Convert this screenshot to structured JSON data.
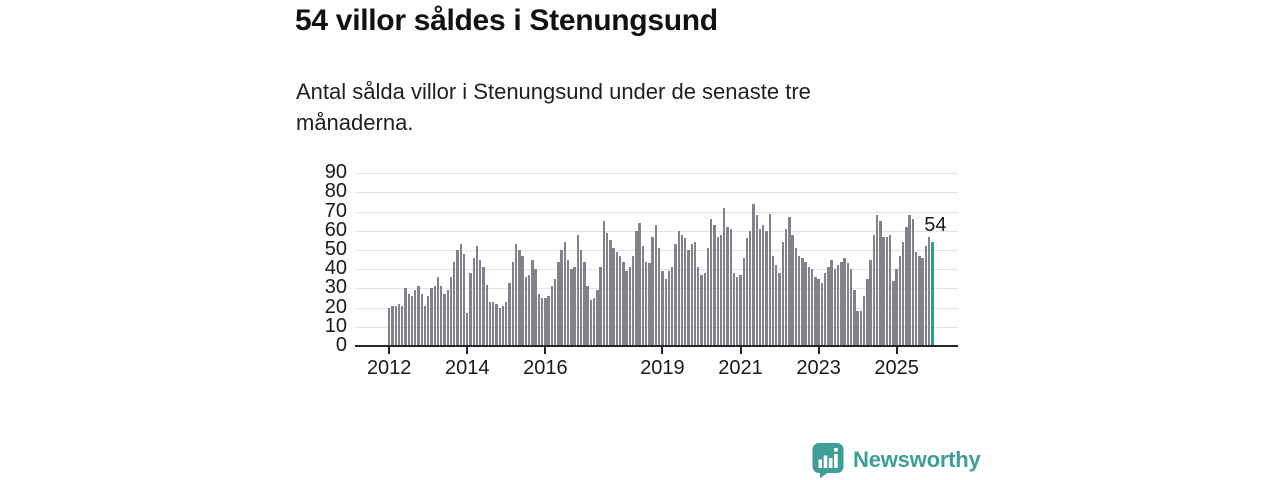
{
  "header": {
    "title": "54 villor såldes i Stenungsund",
    "subtitle": "Antal sålda villor i Stenungsund under de senaste tre månaderna."
  },
  "chart_data": {
    "type": "bar",
    "title": "54 villor såldes i Stenungsund",
    "subtitle": "Antal sålda villor i Stenungsund under de senaste tre månaderna.",
    "x_start": "2012-01",
    "x_end": "2025-12",
    "x_frequency": "monthly",
    "ylim": [
      0,
      90
    ],
    "yticks": [
      0,
      10,
      20,
      30,
      40,
      50,
      60,
      70,
      80,
      90
    ],
    "xticks": [
      2012,
      2014,
      2016,
      2019,
      2021,
      2023,
      2025
    ],
    "grid": "horizontal",
    "values": [
      20,
      21,
      21,
      22,
      21,
      30,
      27,
      26,
      29,
      31,
      27,
      21,
      26,
      30,
      31,
      36,
      31,
      27,
      29,
      36,
      44,
      50,
      53,
      48,
      17,
      38,
      46,
      52,
      45,
      41,
      32,
      23,
      23,
      22,
      20,
      21,
      23,
      33,
      44,
      53,
      50,
      47,
      36,
      37,
      45,
      40,
      27,
      25,
      25,
      26,
      31,
      35,
      44,
      50,
      54,
      45,
      40,
      41,
      58,
      50,
      44,
      31,
      24,
      25,
      29,
      41,
      65,
      59,
      55,
      51,
      49,
      47,
      44,
      39,
      41,
      47,
      60,
      64,
      52,
      44,
      43,
      57,
      63,
      51,
      39,
      35,
      39,
      41,
      53,
      60,
      58,
      56,
      50,
      53,
      54,
      41,
      37,
      38,
      51,
      66,
      63,
      57,
      58,
      72,
      62,
      61,
      38,
      36,
      37,
      46,
      56,
      60,
      74,
      68,
      61,
      63,
      60,
      69,
      47,
      42,
      38,
      54,
      61,
      67,
      58,
      51,
      47,
      46,
      44,
      41,
      40,
      36,
      35,
      33,
      38,
      41,
      45,
      40,
      42,
      44,
      46,
      43,
      40,
      29,
      18,
      18,
      26,
      35,
      45,
      58,
      68,
      65,
      57,
      57,
      58,
      34,
      40,
      47,
      54,
      62,
      68,
      66,
      49,
      47,
      46,
      52,
      57,
      54
    ],
    "highlight": {
      "index": 167,
      "value": 54,
      "label": "54"
    },
    "colors": {
      "bar": "#82828a",
      "highlight": "#18a39c",
      "grid": "#e3e3e3",
      "axis": "#262626",
      "text": "#1a1a1a"
    }
  },
  "branding": {
    "name": "Newsworthy",
    "color": "#3f9e98",
    "icon": "bar-chart-speech-bubble-icon"
  }
}
